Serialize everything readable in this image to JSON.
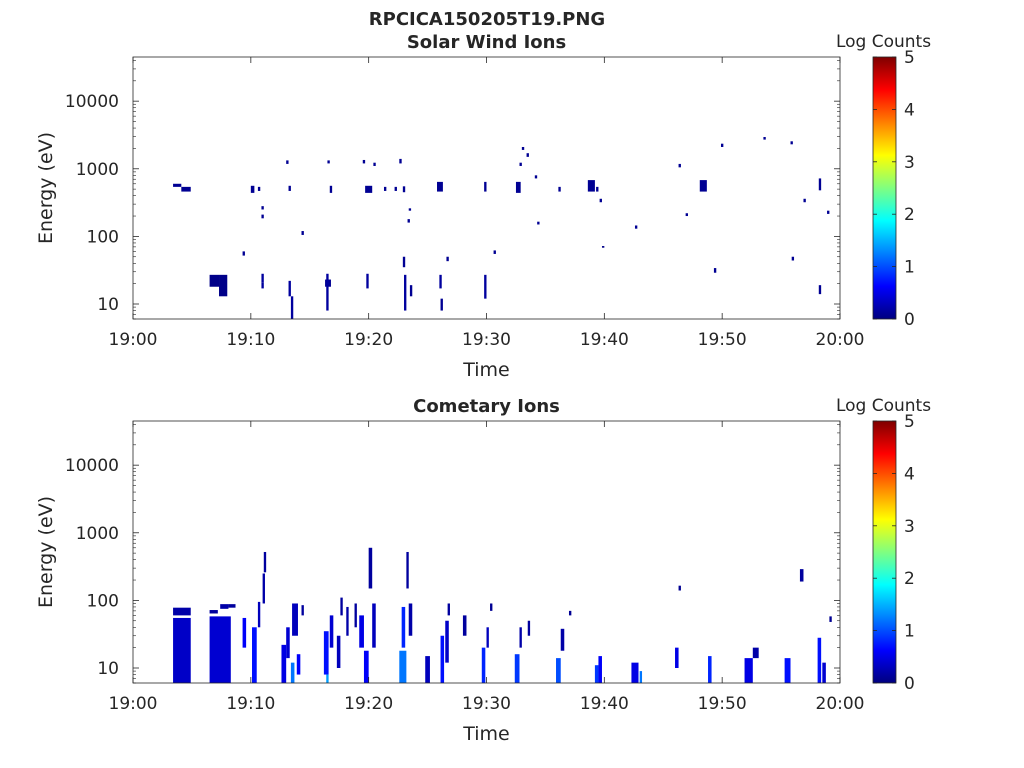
{
  "figure_title": "RPCICA150205T19.PNG",
  "colors": {
    "background": "#ffffff",
    "axis": "#262626",
    "colormap": [
      "#00007f",
      "#0000ff",
      "#0080ff",
      "#00ffff",
      "#80ff80",
      "#ffff00",
      "#ff8000",
      "#ff0000",
      "#7f0000"
    ]
  },
  "chart_data": [
    {
      "type": "heatmap",
      "title": "Solar Wind Ions",
      "xlabel": "Time",
      "ylabel": "Energy (eV)",
      "x_ticks": [
        "19:00",
        "19:10",
        "19:20",
        "19:30",
        "19:40",
        "19:50",
        "20:00"
      ],
      "y_ticks": [
        "10",
        "100",
        "1000",
        "10000"
      ],
      "y_scale": "log",
      "x_range": [
        0,
        60
      ],
      "y_range": [
        6,
        45000
      ],
      "colorbar": {
        "label": "Log Counts",
        "range": [
          0,
          5
        ],
        "ticks": [
          "0",
          "1",
          "2",
          "3",
          "4",
          "5"
        ]
      },
      "cells": [
        [
          3.4,
          4.1,
          540,
          600,
          0.1
        ],
        [
          4.1,
          4.9,
          460,
          540,
          0.1
        ],
        [
          6.5,
          7.3,
          18,
          27,
          0.05
        ],
        [
          7.3,
          8.0,
          13,
          27,
          0.05
        ],
        [
          9.3,
          9.5,
          52,
          60,
          0.1
        ],
        [
          10.0,
          10.3,
          440,
          560,
          0.1
        ],
        [
          10.6,
          10.8,
          470,
          540,
          0.1
        ],
        [
          10.9,
          11.1,
          250,
          280,
          0.1
        ],
        [
          10.9,
          11.1,
          185,
          210,
          0.1
        ],
        [
          10.9,
          11.1,
          21,
          28,
          0.15
        ],
        [
          10.9,
          11.1,
          17,
          21,
          0.15
        ],
        [
          13.0,
          13.2,
          1180,
          1330,
          0.1
        ],
        [
          13.2,
          13.4,
          470,
          560,
          0.1
        ],
        [
          13.2,
          13.4,
          13,
          22,
          0.15
        ],
        [
          13.4,
          13.6,
          6,
          13,
          0.15
        ],
        [
          14.3,
          14.5,
          105,
          120,
          0.1
        ],
        [
          16.3,
          16.8,
          18,
          23,
          0.1
        ],
        [
          16.4,
          16.6,
          8,
          28,
          0.15
        ],
        [
          16.5,
          16.7,
          1200,
          1330,
          0.1
        ],
        [
          16.7,
          16.9,
          440,
          560,
          0.1
        ],
        [
          19.5,
          19.7,
          1200,
          1350,
          0.1
        ],
        [
          19.7,
          20.3,
          440,
          560,
          0.1
        ],
        [
          19.8,
          20.0,
          17,
          28,
          0.15
        ],
        [
          20.4,
          20.6,
          1100,
          1230,
          0.1
        ],
        [
          21.3,
          21.5,
          470,
          540,
          0.1
        ],
        [
          22.2,
          22.4,
          470,
          540,
          0.1
        ],
        [
          22.6,
          22.8,
          1200,
          1400,
          0.1
        ],
        [
          22.9,
          23.1,
          450,
          550,
          0.1
        ],
        [
          22.9,
          23.1,
          35,
          50,
          0.1
        ],
        [
          23.0,
          23.2,
          8,
          27,
          0.15
        ],
        [
          23.3,
          23.5,
          160,
          180,
          0.1
        ],
        [
          23.4,
          23.6,
          240,
          260,
          0.1
        ],
        [
          23.5,
          23.7,
          13,
          19,
          0.1
        ],
        [
          25.8,
          26.3,
          460,
          640,
          0.1
        ],
        [
          26.0,
          26.2,
          17,
          27,
          0.15
        ],
        [
          26.1,
          26.3,
          8,
          12,
          0.1
        ],
        [
          26.6,
          26.8,
          43,
          50,
          0.1
        ],
        [
          29.8,
          30.0,
          460,
          640,
          0.1
        ],
        [
          29.8,
          30.0,
          12,
          27,
          0.15
        ],
        [
          30.6,
          30.8,
          55,
          62,
          0.1
        ],
        [
          32.5,
          32.9,
          440,
          640,
          0.1
        ],
        [
          32.8,
          33.0,
          1100,
          1230,
          0.1
        ],
        [
          33.0,
          33.2,
          1900,
          2100,
          0.1
        ],
        [
          33.4,
          33.6,
          1500,
          1700,
          0.1
        ],
        [
          34.1,
          34.3,
          720,
          800,
          0.1
        ],
        [
          34.3,
          34.5,
          150,
          165,
          0.1
        ],
        [
          36.1,
          36.3,
          460,
          540,
          0.1
        ],
        [
          38.6,
          39.2,
          460,
          680,
          0.1
        ],
        [
          39.3,
          39.5,
          460,
          540,
          0.1
        ],
        [
          39.6,
          39.8,
          320,
          360,
          0.1
        ],
        [
          39.8,
          40.0,
          68,
          72,
          0.05
        ],
        [
          42.6,
          42.8,
          130,
          145,
          0.1
        ],
        [
          46.3,
          46.5,
          1050,
          1180,
          0.1
        ],
        [
          46.9,
          47.1,
          200,
          220,
          0.1
        ],
        [
          48.1,
          48.7,
          460,
          680,
          0.1
        ],
        [
          49.3,
          49.5,
          29,
          34,
          0.1
        ],
        [
          49.9,
          50.1,
          2100,
          2350,
          0.1
        ],
        [
          53.5,
          53.7,
          2700,
          2950,
          0.1
        ],
        [
          55.8,
          56.0,
          2300,
          2550,
          0.1
        ],
        [
          55.9,
          56.1,
          44,
          50,
          0.1
        ],
        [
          56.9,
          57.1,
          320,
          360,
          0.1
        ],
        [
          58.2,
          58.4,
          480,
          720,
          0.1
        ],
        [
          58.2,
          58.4,
          14,
          19,
          0.1
        ],
        [
          58.9,
          59.1,
          215,
          240,
          0.1
        ]
      ]
    },
    {
      "type": "heatmap",
      "title": "Cometary Ions",
      "xlabel": "Time",
      "ylabel": "Energy (eV)",
      "x_ticks": [
        "19:00",
        "19:10",
        "19:20",
        "19:30",
        "19:40",
        "19:50",
        "20:00"
      ],
      "y_ticks": [
        "10",
        "100",
        "1000",
        "10000"
      ],
      "y_scale": "log",
      "x_range": [
        0,
        60
      ],
      "y_range": [
        6,
        45000
      ],
      "colorbar": {
        "label": "Log Counts",
        "range": [
          0,
          5
        ],
        "ticks": [
          "0",
          "1",
          "2",
          "3",
          "4",
          "5"
        ]
      },
      "cells": [
        [
          3.4,
          4.9,
          6,
          55,
          0.35
        ],
        [
          3.4,
          4.9,
          60,
          78,
          0.2
        ],
        [
          6.5,
          8.3,
          6,
          58,
          0.4
        ],
        [
          6.5,
          7.2,
          64,
          72,
          0.15
        ],
        [
          7.4,
          8.1,
          75,
          88,
          0.2
        ],
        [
          8.1,
          8.7,
          78,
          88,
          0.15
        ],
        [
          9.3,
          9.6,
          20,
          55,
          0.6
        ],
        [
          10.1,
          10.5,
          6,
          40,
          0.7
        ],
        [
          10.6,
          10.8,
          40,
          95,
          0.3
        ],
        [
          11.0,
          11.2,
          90,
          250,
          0.2
        ],
        [
          11.1,
          11.3,
          260,
          520,
          0.15
        ],
        [
          12.6,
          13.0,
          6,
          22,
          0.5
        ],
        [
          13.0,
          13.3,
          14,
          40,
          0.4
        ],
        [
          13.4,
          13.7,
          6,
          12,
          1.2
        ],
        [
          13.5,
          14.0,
          30,
          90,
          0.3
        ],
        [
          13.9,
          14.2,
          8,
          16,
          0.6
        ],
        [
          14.3,
          14.5,
          60,
          85,
          0.15
        ],
        [
          16.2,
          16.6,
          8,
          35,
          0.7
        ],
        [
          16.4,
          16.6,
          6,
          8,
          1.4
        ],
        [
          16.7,
          17.0,
          20,
          60,
          0.4
        ],
        [
          17.3,
          17.6,
          10,
          30,
          0.3
        ],
        [
          17.6,
          17.8,
          60,
          110,
          0.15
        ],
        [
          18.1,
          18.3,
          30,
          80,
          0.2
        ],
        [
          18.8,
          19.0,
          40,
          90,
          0.15
        ],
        [
          19.2,
          19.6,
          20,
          60,
          0.5
        ],
        [
          19.6,
          20.0,
          6,
          18,
          0.6
        ],
        [
          20.0,
          20.3,
          150,
          600,
          0.15
        ],
        [
          20.3,
          20.6,
          20,
          90,
          0.3
        ],
        [
          22.6,
          23.2,
          6,
          18,
          1.2
        ],
        [
          22.8,
          23.1,
          20,
          80,
          0.8
        ],
        [
          23.2,
          23.4,
          150,
          520,
          0.15
        ],
        [
          23.4,
          23.7,
          30,
          90,
          0.2
        ],
        [
          24.8,
          25.2,
          6,
          15,
          0.3
        ],
        [
          26.1,
          26.4,
          6,
          30,
          0.7
        ],
        [
          26.5,
          26.8,
          12,
          50,
          0.35
        ],
        [
          26.7,
          26.9,
          60,
          90,
          0.15
        ],
        [
          28.0,
          28.3,
          30,
          60,
          0.15
        ],
        [
          29.6,
          29.9,
          6,
          20,
          0.8
        ],
        [
          30.0,
          30.2,
          20,
          40,
          0.3
        ],
        [
          30.3,
          30.5,
          70,
          90,
          0.1
        ],
        [
          32.4,
          32.8,
          6,
          16,
          0.9
        ],
        [
          32.8,
          33.0,
          20,
          40,
          0.2
        ],
        [
          33.5,
          33.7,
          30,
          50,
          0.15
        ],
        [
          35.9,
          36.3,
          6,
          14,
          1.0
        ],
        [
          36.3,
          36.6,
          18,
          38,
          0.2
        ],
        [
          37.0,
          37.2,
          60,
          70,
          0.1
        ],
        [
          39.2,
          39.5,
          6,
          11,
          0.9
        ],
        [
          39.5,
          39.8,
          6,
          15,
          0.6
        ],
        [
          42.3,
          42.9,
          6,
          12,
          0.5
        ],
        [
          43.0,
          43.2,
          6,
          9,
          1.2
        ],
        [
          46.0,
          46.3,
          10,
          20,
          0.5
        ],
        [
          46.3,
          46.5,
          140,
          165,
          0.1
        ],
        [
          48.8,
          49.1,
          6,
          15,
          0.8
        ],
        [
          51.9,
          52.6,
          6,
          14,
          0.5
        ],
        [
          52.6,
          53.1,
          14,
          20,
          0.2
        ],
        [
          55.3,
          55.8,
          6,
          14,
          0.7
        ],
        [
          56.6,
          56.9,
          190,
          290,
          0.15
        ],
        [
          58.1,
          58.4,
          6,
          28,
          0.7
        ],
        [
          58.5,
          58.8,
          6,
          12,
          0.4
        ],
        [
          59.1,
          59.3,
          48,
          58,
          0.1
        ]
      ]
    }
  ]
}
